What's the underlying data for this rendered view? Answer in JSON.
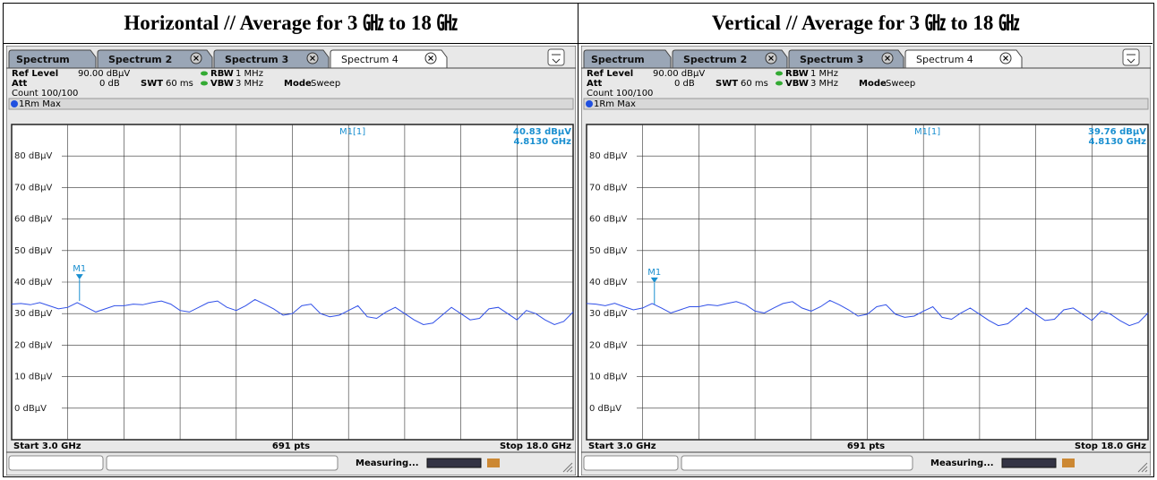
{
  "panels": [
    {
      "heading": "Horizontal // Average for 3 ㎓ to 18 ㎓",
      "tabs": [
        "Spectrum",
        "Spectrum 2",
        "Spectrum 3",
        "Spectrum 4"
      ],
      "ref_level_label": "Ref Level",
      "ref_level": "90.00 dBµV",
      "att_label": "Att",
      "att": "0 dB",
      "swt_label": "SWT",
      "swt": "60 ms",
      "rbw_label": "RBW",
      "rbw": "1 MHz",
      "vbw_label": "VBW",
      "vbw": "3 MHz",
      "mode_label": "Mode",
      "mode": "Sweep",
      "count": "Count 100/100",
      "trace_label": "1Rm Max",
      "start": "Start 3.0 GHz",
      "points": "691 pts",
      "stop": "Stop 18.0 GHz",
      "status": "Measuring..."
    },
    {
      "heading": "Vertical // Average for 3 ㎓ to 18 ㎓",
      "tabs": [
        "Spectrum",
        "Spectrum 2",
        "Spectrum 3",
        "Spectrum 4"
      ],
      "ref_level_label": "Ref Level",
      "ref_level": "90.00 dBµV",
      "att_label": "Att",
      "att": "0 dB",
      "swt_label": "SWT",
      "swt": "60 ms",
      "rbw_label": "RBW",
      "rbw": "1 MHz",
      "vbw_label": "VBW",
      "vbw": "3 MHz",
      "mode_label": "Mode",
      "mode": "Sweep",
      "count": "Count 100/100",
      "trace_label": "1Rm Max",
      "start": "Start 3.0 GHz",
      "points": "691 pts",
      "stop": "Stop 18.0 GHz",
      "status": "Measuring..."
    }
  ],
  "chart_data": [
    {
      "type": "line",
      "xlim": [
        3,
        18
      ],
      "ylim": [
        -10,
        90
      ],
      "yticks": [
        {
          "value": 0,
          "label": "0 dBµV"
        },
        {
          "value": 10,
          "label": "10 dBµV"
        },
        {
          "value": 20,
          "label": "20 dBµV"
        },
        {
          "value": 30,
          "label": "30 dBµV"
        },
        {
          "value": 40,
          "label": "40 dBµV"
        },
        {
          "value": 50,
          "label": "50 dBµV"
        },
        {
          "value": 60,
          "label": "60 dBµV"
        },
        {
          "value": 70,
          "label": "70 dBµV"
        },
        {
          "value": 80,
          "label": "80 dBµV"
        }
      ],
      "grid": true,
      "x": [
        3,
        3.25,
        3.5,
        3.75,
        4,
        4.25,
        4.5,
        4.75,
        5,
        5.25,
        5.5,
        5.75,
        6,
        6.25,
        6.5,
        6.75,
        7,
        7.25,
        7.5,
        7.75,
        8,
        8.25,
        8.5,
        8.75,
        9,
        9.25,
        9.5,
        9.75,
        10,
        10.25,
        10.5,
        10.75,
        11,
        11.25,
        11.5,
        11.75,
        12,
        12.25,
        12.5,
        12.75,
        13,
        13.25,
        13.5,
        13.75,
        14,
        14.25,
        14.5,
        14.75,
        15,
        15.25,
        15.5,
        15.75,
        16,
        16.25,
        16.5,
        16.75,
        17,
        17.25,
        17.5,
        17.75,
        18
      ],
      "series": [
        {
          "color": "#3050e8",
          "values": [
            33,
            33.2,
            32.8,
            33.5,
            32.5,
            31.5,
            32,
            33.5,
            32,
            30.5,
            31.5,
            32.5,
            32.5,
            33,
            32.8,
            33.5,
            34,
            33,
            31,
            30.5,
            32,
            33.5,
            34,
            32,
            31,
            32.5,
            34.5,
            33,
            31.5,
            29.5,
            30,
            32.5,
            33,
            30,
            29,
            29.5,
            31,
            32.5,
            29,
            28.5,
            30.5,
            32,
            30,
            28,
            26.5,
            27,
            29.5,
            32,
            30,
            28,
            28.5,
            31.5,
            32,
            30,
            28,
            31,
            30,
            28,
            26.5,
            27.5,
            30.5
          ]
        }
      ],
      "marker": {
        "name": "M1",
        "readout": "M1[1]",
        "x": 4.813,
        "y": 40.83,
        "x_label": "4.8130 GHz",
        "y_label": "40.83 dBµV"
      }
    },
    {
      "type": "line",
      "xlim": [
        3,
        18
      ],
      "ylim": [
        -10,
        90
      ],
      "yticks": [
        {
          "value": 0,
          "label": "0 dBµV"
        },
        {
          "value": 10,
          "label": "10 dBµV"
        },
        {
          "value": 20,
          "label": "20 dBµV"
        },
        {
          "value": 30,
          "label": "30 dBµV"
        },
        {
          "value": 40,
          "label": "40 dBµV"
        },
        {
          "value": 50,
          "label": "50 dBµV"
        },
        {
          "value": 60,
          "label": "60 dBµV"
        },
        {
          "value": 70,
          "label": "70 dBµV"
        },
        {
          "value": 80,
          "label": "80 dBµV"
        }
      ],
      "grid": true,
      "x": [
        3,
        3.25,
        3.5,
        3.75,
        4,
        4.25,
        4.5,
        4.75,
        5,
        5.25,
        5.5,
        5.75,
        6,
        6.25,
        6.5,
        6.75,
        7,
        7.25,
        7.5,
        7.75,
        8,
        8.25,
        8.5,
        8.75,
        9,
        9.25,
        9.5,
        9.75,
        10,
        10.25,
        10.5,
        10.75,
        11,
        11.25,
        11.5,
        11.75,
        12,
        12.25,
        12.5,
        12.75,
        13,
        13.25,
        13.5,
        13.75,
        14,
        14.25,
        14.5,
        14.75,
        15,
        15.25,
        15.5,
        15.75,
        16,
        16.25,
        16.5,
        16.75,
        17,
        17.25,
        17.5,
        17.75,
        18
      ],
      "series": [
        {
          "color": "#3050e8",
          "values": [
            33.2,
            33,
            32.5,
            33.3,
            32.2,
            31.2,
            31.8,
            33.2,
            31.8,
            30.2,
            31.2,
            32.2,
            32.2,
            32.8,
            32.5,
            33.2,
            33.8,
            32.8,
            30.8,
            30.2,
            31.8,
            33.2,
            33.8,
            31.8,
            30.8,
            32.2,
            34.2,
            32.8,
            31.2,
            29.2,
            29.8,
            32.2,
            32.8,
            29.8,
            28.8,
            29.2,
            30.8,
            32.2,
            28.8,
            28.2,
            30.2,
            31.8,
            29.8,
            27.8,
            26.2,
            26.8,
            29.2,
            31.8,
            29.8,
            27.8,
            28.2,
            31.2,
            31.8,
            29.8,
            27.8,
            30.8,
            29.8,
            27.8,
            26.2,
            27.2,
            30.2
          ]
        }
      ],
      "marker": {
        "name": "M1",
        "readout": "M1[1]",
        "x": 4.813,
        "y": 39.76,
        "x_label": "4.8130 GHz",
        "y_label": "39.76 dBµV"
      }
    }
  ]
}
